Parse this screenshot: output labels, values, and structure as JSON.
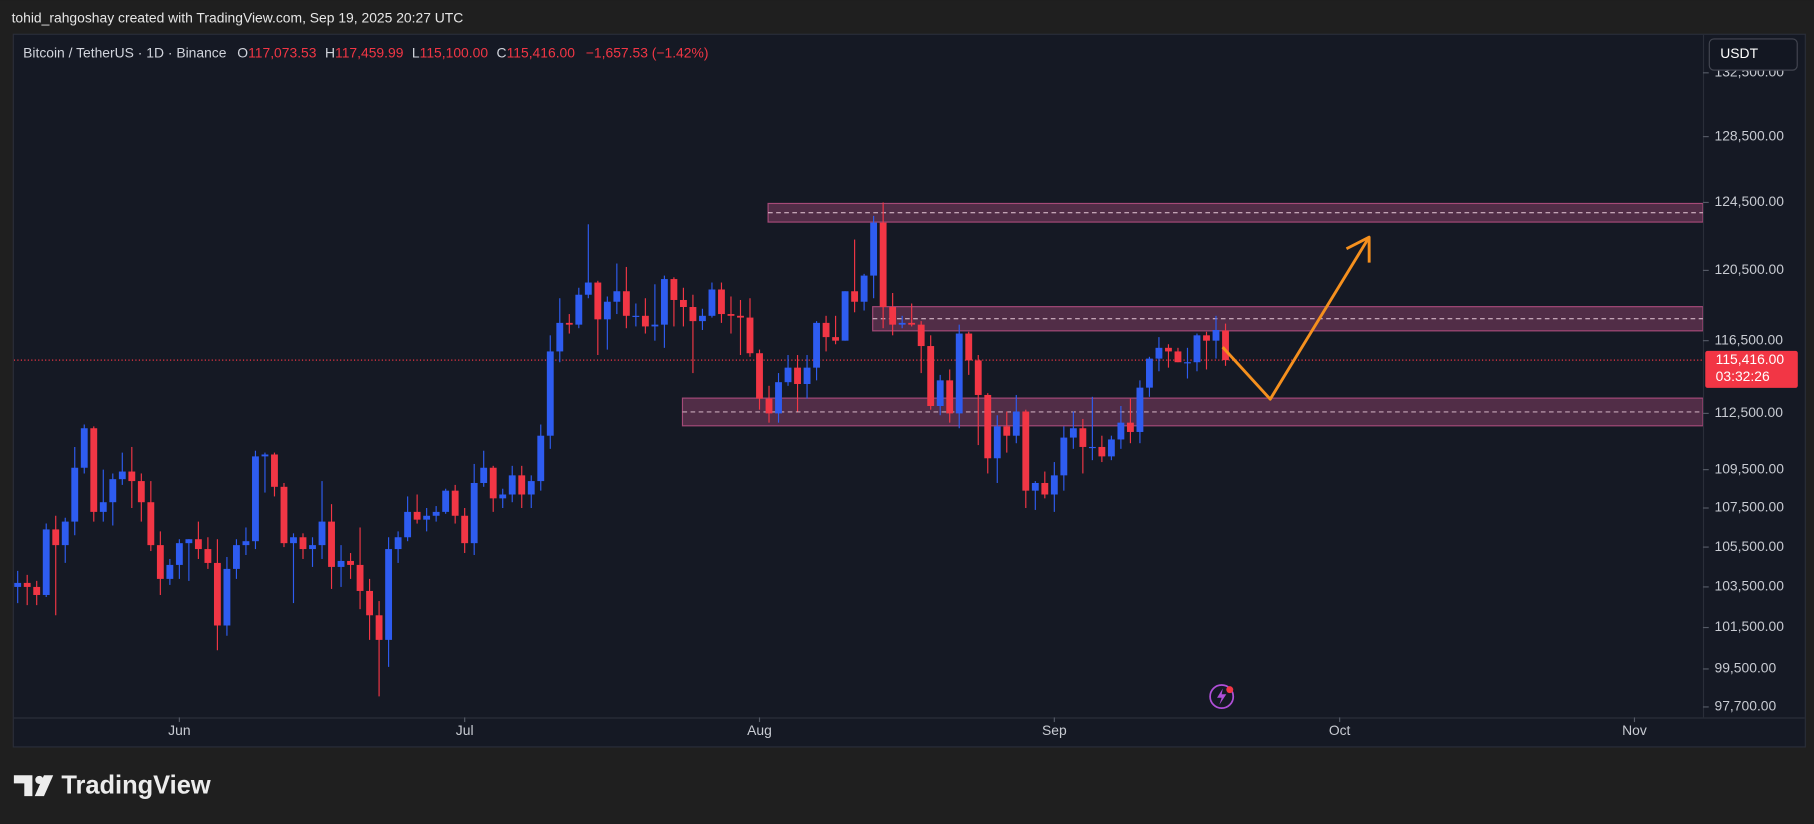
{
  "attribution": "tohid_rahgoshay created with TradingView.com, Sep 19, 2025 20:27 UTC",
  "brand": "TradingView",
  "chart_data": {
    "type": "candlestick",
    "symbol": "Bitcoin / TetherUS · 1D · Binance",
    "ohlc_legend": [
      {
        "key": "O",
        "text": "117,073.53"
      },
      {
        "key": "H",
        "text": "117,459.99"
      },
      {
        "key": "L",
        "text": "115,100.00"
      },
      {
        "key": "C",
        "text": "115,416.00"
      }
    ],
    "change": "−1,657.53 (−1.42%)",
    "currency": "USDT",
    "log_scale": true,
    "grid": false,
    "up_color": "#2e5cf0",
    "down_color": "#f23645",
    "ylim": [
      97210,
      134940
    ],
    "yticks": [
      {
        "value": 97700,
        "label": "97,700.00"
      },
      {
        "value": 99500,
        "label": "99,500.00"
      },
      {
        "value": 101500,
        "label": "101,500.00"
      },
      {
        "value": 103500,
        "label": "103,500.00"
      },
      {
        "value": 105500,
        "label": "105,500.00"
      },
      {
        "value": 107500,
        "label": "107,500.00"
      },
      {
        "value": 109500,
        "label": "109,500.00"
      },
      {
        "value": 112500,
        "label": "112,500.00"
      },
      {
        "value": 116500,
        "label": "116,500.00"
      },
      {
        "value": 120500,
        "label": "120,500.00"
      },
      {
        "value": 124500,
        "label": "124,500.00"
      },
      {
        "value": 128500,
        "label": "128,500.00"
      },
      {
        "value": 132500,
        "label": "132,500.00"
      }
    ],
    "xlim": [
      -17.4,
      160.2
    ],
    "xticks": [
      {
        "value": 0,
        "label": "Jun"
      },
      {
        "value": 30,
        "label": "Jul"
      },
      {
        "value": 61,
        "label": "Aug"
      },
      {
        "value": 92,
        "label": "Sep"
      },
      {
        "value": 122,
        "label": "Oct"
      },
      {
        "value": 153,
        "label": "Nov"
      }
    ],
    "x": [
      -17,
      -16,
      -15,
      -14,
      -13,
      -12,
      -11,
      -10,
      -9,
      -8,
      -7,
      -6,
      -5,
      -4,
      -3,
      -2,
      -1,
      0,
      1,
      2,
      3,
      4,
      5,
      6,
      7,
      8,
      9,
      10,
      11,
      12,
      13,
      14,
      15,
      16,
      17,
      18,
      19,
      20,
      21,
      22,
      23,
      24,
      25,
      26,
      27,
      28,
      29,
      30,
      31,
      32,
      33,
      34,
      35,
      36,
      37,
      38,
      39,
      40,
      41,
      42,
      43,
      44,
      45,
      46,
      47,
      48,
      49,
      50,
      51,
      52,
      53,
      54,
      55,
      56,
      57,
      58,
      59,
      60,
      61,
      62,
      63,
      64,
      65,
      66,
      67,
      68,
      69,
      70,
      71,
      72,
      73,
      74,
      75,
      76,
      77,
      78,
      79,
      80,
      81,
      82,
      83,
      84,
      85,
      86,
      87,
      88,
      89,
      90,
      91,
      92,
      93,
      94,
      95,
      96,
      97,
      98,
      99,
      100,
      101,
      102,
      103,
      104,
      105,
      106,
      107,
      108,
      109,
      110
    ],
    "ohlc": [
      [
        103500,
        104300,
        102700,
        103700
      ],
      [
        103700,
        104100,
        102600,
        103500
      ],
      [
        103500,
        103800,
        102600,
        103100
      ],
      [
        103100,
        106700,
        103000,
        106400
      ],
      [
        106400,
        107100,
        102100,
        105600
      ],
      [
        105600,
        107000,
        104700,
        106800
      ],
      [
        106800,
        110700,
        106100,
        109600
      ],
      [
        109600,
        111900,
        109300,
        111700
      ],
      [
        111700,
        111800,
        106800,
        107300
      ],
      [
        107300,
        109500,
        106800,
        107800
      ],
      [
        107800,
        109300,
        106600,
        109000
      ],
      [
        109000,
        110400,
        108700,
        109400
      ],
      [
        109400,
        110700,
        107500,
        108900
      ],
      [
        108900,
        109300,
        106800,
        107800
      ],
      [
        107800,
        108900,
        105300,
        105600
      ],
      [
        105600,
        106300,
        103100,
        103900
      ],
      [
        103900,
        104900,
        103600,
        104600
      ],
      [
        104600,
        105900,
        103900,
        105700
      ],
      [
        105700,
        105900,
        103800,
        105900
      ],
      [
        105900,
        106800,
        104900,
        105400
      ],
      [
        105400,
        106000,
        104400,
        104700
      ],
      [
        104700,
        105900,
        100400,
        101600
      ],
      [
        101600,
        105000,
        101100,
        104400
      ],
      [
        104400,
        105900,
        103900,
        105600
      ],
      [
        105600,
        106500,
        105100,
        105800
      ],
      [
        105800,
        110500,
        105400,
        110200
      ],
      [
        110200,
        110400,
        108300,
        110300
      ],
      [
        110300,
        110400,
        108100,
        108600
      ],
      [
        108600,
        108800,
        105500,
        105700
      ],
      [
        105700,
        106200,
        102700,
        106000
      ],
      [
        106000,
        106200,
        104900,
        105400
      ],
      [
        105400,
        106000,
        104500,
        105600
      ],
      [
        105600,
        108900,
        104900,
        106800
      ],
      [
        106800,
        107700,
        103400,
        104500
      ],
      [
        104500,
        105600,
        103500,
        104800
      ],
      [
        104800,
        105200,
        103900,
        104600
      ],
      [
        104600,
        106500,
        102400,
        103300
      ],
      [
        103300,
        103900,
        100900,
        102100
      ],
      [
        102100,
        102800,
        98200,
        100900
      ],
      [
        100900,
        106000,
        99600,
        105400
      ],
      [
        105400,
        106300,
        104700,
        106000
      ],
      [
        106000,
        108100,
        105800,
        107300
      ],
      [
        107300,
        108200,
        106700,
        106900
      ],
      [
        106900,
        107500,
        106300,
        107100
      ],
      [
        107100,
        107600,
        106800,
        107300
      ],
      [
        107300,
        108500,
        107200,
        108400
      ],
      [
        108400,
        108700,
        106700,
        107100
      ],
      [
        107100,
        107500,
        105200,
        105700
      ],
      [
        105700,
        109800,
        105100,
        108800
      ],
      [
        108800,
        110500,
        108600,
        109600
      ],
      [
        109600,
        109700,
        107300,
        108000
      ],
      [
        108000,
        108500,
        107500,
        108200
      ],
      [
        108200,
        109700,
        107800,
        109200
      ],
      [
        109200,
        109700,
        107500,
        108200
      ],
      [
        108200,
        109200,
        107500,
        108900
      ],
      [
        108900,
        111900,
        108400,
        111300
      ],
      [
        111300,
        116800,
        110600,
        115900
      ],
      [
        115900,
        118900,
        115300,
        117500
      ],
      [
        117500,
        118000,
        116900,
        117400
      ],
      [
        117400,
        119500,
        117200,
        119100
      ],
      [
        119100,
        123200,
        118900,
        119800
      ],
      [
        119800,
        119900,
        115700,
        117700
      ],
      [
        117700,
        119000,
        116000,
        118700
      ],
      [
        118700,
        120900,
        118000,
        119300
      ],
      [
        119300,
        120700,
        117200,
        117900
      ],
      [
        117900,
        118600,
        117300,
        117900
      ],
      [
        117900,
        118900,
        116900,
        117300
      ],
      [
        117300,
        119700,
        116500,
        117400
      ],
      [
        117400,
        120200,
        116100,
        120000
      ],
      [
        120000,
        120100,
        117300,
        118800
      ],
      [
        118800,
        119500,
        117300,
        118400
      ],
      [
        118400,
        119100,
        114700,
        117600
      ],
      [
        117600,
        118300,
        117100,
        117900
      ],
      [
        117900,
        119800,
        117800,
        119400
      ],
      [
        119400,
        119800,
        117500,
        118000
      ],
      [
        118000,
        119000,
        116900,
        117900
      ],
      [
        117900,
        118800,
        115700,
        117800
      ],
      [
        117800,
        118900,
        115600,
        115800
      ],
      [
        115800,
        116000,
        112700,
        113300
      ],
      [
        113300,
        114000,
        112000,
        112500
      ],
      [
        112500,
        114700,
        112000,
        114200
      ],
      [
        114200,
        115700,
        114000,
        115000
      ],
      [
        115000,
        115700,
        112600,
        114100
      ],
      [
        114100,
        115700,
        113300,
        115000
      ],
      [
        115000,
        117600,
        114300,
        117500
      ],
      [
        117500,
        117900,
        115900,
        116700
      ],
      [
        116700,
        117900,
        116300,
        116500
      ],
      [
        116500,
        119300,
        116500,
        119300
      ],
      [
        119300,
        122300,
        118100,
        118700
      ],
      [
        118700,
        120300,
        118200,
        120200
      ],
      [
        120200,
        123700,
        118900,
        123300
      ],
      [
        123300,
        124500,
        117200,
        118400
      ],
      [
        118400,
        119200,
        116800,
        117400
      ],
      [
        117400,
        117900,
        117200,
        117500
      ],
      [
        117500,
        118600,
        117300,
        117400
      ],
      [
        117400,
        117600,
        114700,
        116200
      ],
      [
        116200,
        116800,
        112700,
        112900
      ],
      [
        112900,
        114600,
        112400,
        114300
      ],
      [
        114300,
        114900,
        112000,
        112500
      ],
      [
        112500,
        117400,
        111700,
        116900
      ],
      [
        116900,
        117000,
        114600,
        115400
      ],
      [
        115400,
        115700,
        110800,
        113500
      ],
      [
        113500,
        113600,
        109300,
        110100
      ],
      [
        110100,
        112400,
        108800,
        111800
      ],
      [
        111800,
        112600,
        110400,
        111300
      ],
      [
        111300,
        113500,
        110900,
        112600
      ],
      [
        112600,
        112700,
        107500,
        108400
      ],
      [
        108400,
        108900,
        107400,
        108800
      ],
      [
        108800,
        109400,
        108000,
        108200
      ],
      [
        108200,
        109900,
        107300,
        109200
      ],
      [
        109200,
        111800,
        108400,
        111200
      ],
      [
        111200,
        112600,
        110600,
        111700
      ],
      [
        111700,
        112200,
        109300,
        110700
      ],
      [
        110700,
        113400,
        110000,
        110700
      ],
      [
        110700,
        111300,
        109900,
        110200
      ],
      [
        110200,
        111300,
        110000,
        111100
      ],
      [
        111100,
        112900,
        110600,
        112000
      ],
      [
        112000,
        113300,
        110900,
        111500
      ],
      [
        111500,
        114300,
        110900,
        113900
      ],
      [
        113900,
        115600,
        113400,
        115500
      ],
      [
        115500,
        116700,
        114800,
        116100
      ],
      [
        116100,
        116300,
        115000,
        115900
      ],
      [
        115900,
        116100,
        115300,
        115300
      ],
      [
        115300,
        116100,
        114400,
        115300
      ],
      [
        115300,
        116900,
        114800,
        116800
      ],
      [
        116800,
        117000,
        114900,
        116500
      ],
      [
        116500,
        117900,
        115500,
        117100
      ],
      [
        117073.53,
        117459.99,
        115100,
        115416
      ]
    ],
    "zones": [
      {
        "start": 61.9,
        "top": 124440,
        "bottom": 123330
      },
      {
        "start": 72.9,
        "top": 118420,
        "bottom": 117050
      },
      {
        "start": 52.9,
        "top": 113330,
        "bottom": 111830
      }
    ],
    "zone_color": "#c2548a",
    "arrow": {
      "x": [
        109.7,
        114.7,
        125.1
      ],
      "y": [
        116140,
        113270,
        122440
      ],
      "color": "#f5901e"
    },
    "last_price": {
      "value": 115416,
      "label": "115,416.00",
      "countdown": "03:32:26"
    }
  }
}
